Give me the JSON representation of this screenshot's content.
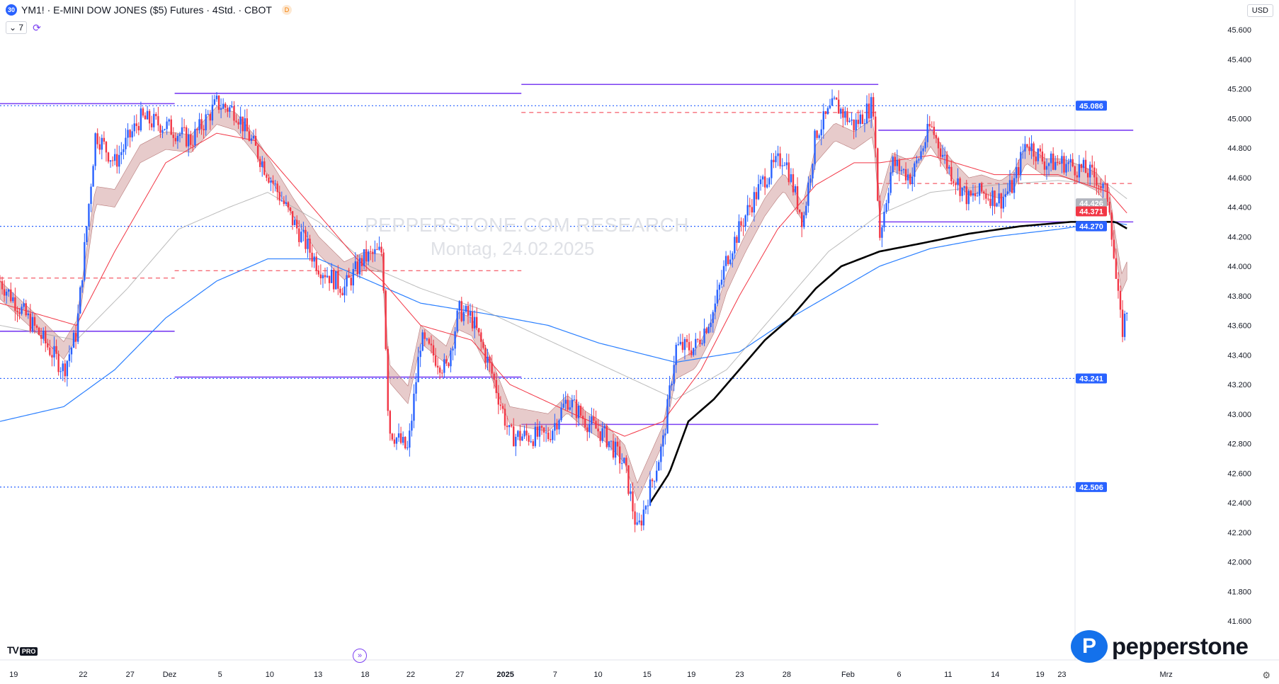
{
  "header": {
    "symbol_badge": "30",
    "title": "YM1! · E-MINI DOW JONES ($5) Futures · 4Std. · CBOT",
    "d_badge": "D",
    "indicator_count": "7",
    "currency": "USD"
  },
  "watermark": {
    "line1": "PEPPERSTONE.COM RESEARCH",
    "line2": "Montag, 24.02.2025"
  },
  "branding": {
    "tv_logo": "TV",
    "tv_pro": "PRO",
    "pepperstone_mark": "P",
    "pepperstone_word": "pepperstone"
  },
  "icons": {
    "sync": "sync-icon",
    "jump": "jump-to-realtime-icon",
    "settings": "gear-icon"
  },
  "colors": {
    "up": "#2962ff",
    "down": "#f23645",
    "ema_fast": "#f23645",
    "ema_slow": "#9e9e9e",
    "ma_long": "#2a7fff",
    "vwap": "#000000",
    "hline": "#7b3ff2",
    "dotted": "#2962ff",
    "cloud_up": "#cfcfcf",
    "cloud_down": "#c98b8b"
  },
  "chart_data": {
    "type": "candlestick",
    "title": "YM1! · E-MINI DOW JONES ($5) Futures · 4Std. · CBOT",
    "ylim": [
      41.5,
      45.7
    ],
    "y_ticks": [
      41.6,
      41.8,
      42.0,
      42.2,
      42.4,
      42.6,
      42.8,
      43.0,
      43.2,
      43.4,
      43.6,
      43.8,
      44.0,
      44.2,
      44.4,
      44.6,
      44.8,
      45.0,
      45.2,
      45.4,
      45.6
    ],
    "y_tick_labels": [
      "41.600",
      "41.800",
      "42.000",
      "42.200",
      "42.400",
      "42.600",
      "42.800",
      "43.000",
      "43.200",
      "43.400",
      "43.600",
      "43.800",
      "44.000",
      "44.200",
      "44.400",
      "44.600",
      "44.800",
      "45.000",
      "45.200",
      "45.400",
      "45.600"
    ],
    "x_ticks": [
      "19",
      "22",
      "27",
      "Dez",
      "5",
      "10",
      "13",
      "18",
      "22",
      "27",
      "2025",
      "7",
      "10",
      "15",
      "19",
      "23",
      "28",
      "Feb",
      "6",
      "11",
      "14",
      "19",
      "23",
      "Mrz"
    ],
    "x_tick_bold": [
      "2025"
    ],
    "price_labels": [
      {
        "value": 45.086,
        "text": "45.086",
        "color": "#2962ff"
      },
      {
        "value": 44.426,
        "text": "44.426",
        "color": "#b2b5be"
      },
      {
        "value": 44.371,
        "text": "44.371",
        "color": "#f23645"
      },
      {
        "value": 44.272,
        "text": "44.272",
        "color": "#2962ff"
      },
      {
        "value": 44.27,
        "text": "44.270",
        "color": "#2962ff"
      },
      {
        "value": 43.241,
        "text": "43.241",
        "color": "#2962ff"
      },
      {
        "value": 42.506,
        "text": "42.506",
        "color": "#2962ff"
      }
    ],
    "horizontal_dotted_levels": [
      45.086,
      44.27,
      43.241,
      42.506
    ],
    "trend_segments": [
      {
        "x0": 0,
        "x1": 0.137,
        "y": 45.1
      },
      {
        "x0": 0.137,
        "x1": 0.409,
        "y": 45.17
      },
      {
        "x0": 0.409,
        "x1": 0.689,
        "y": 45.23
      },
      {
        "x0": 0.689,
        "x1": 0.889,
        "y": 44.92
      },
      {
        "x0": 0.689,
        "x1": 0.889,
        "y": 44.3
      },
      {
        "x0": 0,
        "x1": 0.137,
        "y": 43.56
      },
      {
        "x0": 0.137,
        "x1": 0.409,
        "y": 43.25
      },
      {
        "x0": 0.409,
        "x1": 0.689,
        "y": 42.93
      }
    ],
    "dashed_red_levels": [
      {
        "x0": 0.0,
        "x1": 0.137,
        "y": 43.92
      },
      {
        "x0": 0.137,
        "x1": 0.409,
        "y": 43.97
      },
      {
        "x0": 0.409,
        "x1": 0.689,
        "y": 45.04
      },
      {
        "x0": 0.689,
        "x1": 0.889,
        "y": 44.56
      }
    ],
    "candle_anchors": [
      [
        0,
        43.9
      ],
      [
        0.03,
        43.55
      ],
      [
        0.05,
        43.3
      ],
      [
        0.06,
        43.55
      ],
      [
        0.075,
        44.9
      ],
      [
        0.09,
        44.7
      ],
      [
        0.11,
        45.0
      ],
      [
        0.13,
        44.95
      ],
      [
        0.15,
        44.85
      ],
      [
        0.17,
        45.1
      ],
      [
        0.185,
        45.05
      ],
      [
        0.2,
        44.8
      ],
      [
        0.215,
        44.55
      ],
      [
        0.23,
        44.3
      ],
      [
        0.25,
        44.0
      ],
      [
        0.27,
        43.85
      ],
      [
        0.285,
        44.05
      ],
      [
        0.3,
        44.1
      ],
      [
        0.305,
        42.9
      ],
      [
        0.32,
        42.75
      ],
      [
        0.33,
        43.5
      ],
      [
        0.35,
        43.3
      ],
      [
        0.36,
        43.7
      ],
      [
        0.37,
        43.65
      ],
      [
        0.385,
        43.3
      ],
      [
        0.4,
        42.85
      ],
      [
        0.415,
        42.85
      ],
      [
        0.43,
        42.85
      ],
      [
        0.445,
        43.1
      ],
      [
        0.46,
        42.95
      ],
      [
        0.475,
        42.85
      ],
      [
        0.49,
        42.65
      ],
      [
        0.5,
        42.2
      ],
      [
        0.51,
        42.5
      ],
      [
        0.52,
        42.8
      ],
      [
        0.53,
        43.45
      ],
      [
        0.545,
        43.45
      ],
      [
        0.56,
        43.7
      ],
      [
        0.57,
        44.05
      ],
      [
        0.585,
        44.35
      ],
      [
        0.6,
        44.6
      ],
      [
        0.615,
        44.75
      ],
      [
        0.63,
        44.3
      ],
      [
        0.64,
        44.9
      ],
      [
        0.655,
        45.1
      ],
      [
        0.67,
        44.95
      ],
      [
        0.685,
        45.1
      ],
      [
        0.69,
        44.2
      ],
      [
        0.7,
        44.7
      ],
      [
        0.715,
        44.6
      ],
      [
        0.73,
        44.95
      ],
      [
        0.745,
        44.65
      ],
      [
        0.76,
        44.45
      ],
      [
        0.77,
        44.5
      ],
      [
        0.785,
        44.45
      ],
      [
        0.795,
        44.55
      ],
      [
        0.805,
        44.85
      ],
      [
        0.82,
        44.7
      ],
      [
        0.835,
        44.7
      ],
      [
        0.85,
        44.65
      ],
      [
        0.86,
        44.6
      ],
      [
        0.87,
        44.45
      ],
      [
        0.875,
        43.95
      ],
      [
        0.88,
        43.55
      ],
      [
        0.885,
        43.75
      ]
    ],
    "ma_fast_anchors": [
      [
        0,
        43.75
      ],
      [
        0.06,
        43.6
      ],
      [
        0.09,
        44.1
      ],
      [
        0.13,
        44.7
      ],
      [
        0.17,
        44.9
      ],
      [
        0.2,
        44.85
      ],
      [
        0.24,
        44.45
      ],
      [
        0.28,
        44.05
      ],
      [
        0.3,
        43.9
      ],
      [
        0.33,
        43.6
      ],
      [
        0.37,
        43.5
      ],
      [
        0.4,
        43.2
      ],
      [
        0.45,
        43.0
      ],
      [
        0.49,
        42.85
      ],
      [
        0.52,
        42.95
      ],
      [
        0.55,
        43.3
      ],
      [
        0.58,
        43.8
      ],
      [
        0.61,
        44.25
      ],
      [
        0.64,
        44.55
      ],
      [
        0.67,
        44.7
      ],
      [
        0.69,
        44.7
      ],
      [
        0.73,
        44.75
      ],
      [
        0.78,
        44.62
      ],
      [
        0.83,
        44.62
      ],
      [
        0.87,
        44.5
      ],
      [
        0.885,
        44.35
      ]
    ],
    "ma_slow_anchors": [
      [
        0,
        43.6
      ],
      [
        0.06,
        43.5
      ],
      [
        0.1,
        43.85
      ],
      [
        0.14,
        44.25
      ],
      [
        0.18,
        44.4
      ],
      [
        0.21,
        44.5
      ],
      [
        0.25,
        44.3
      ],
      [
        0.29,
        44.0
      ],
      [
        0.33,
        43.85
      ],
      [
        0.38,
        43.7
      ],
      [
        0.43,
        43.5
      ],
      [
        0.48,
        43.3
      ],
      [
        0.53,
        43.1
      ],
      [
        0.57,
        43.3
      ],
      [
        0.61,
        43.7
      ],
      [
        0.65,
        44.1
      ],
      [
        0.69,
        44.35
      ],
      [
        0.73,
        44.5
      ],
      [
        0.78,
        44.55
      ],
      [
        0.83,
        44.58
      ],
      [
        0.87,
        44.55
      ],
      [
        0.885,
        44.45
      ]
    ],
    "ma_long_anchors": [
      [
        0,
        42.95
      ],
      [
        0.05,
        43.05
      ],
      [
        0.09,
        43.3
      ],
      [
        0.13,
        43.65
      ],
      [
        0.17,
        43.9
      ],
      [
        0.21,
        44.05
      ],
      [
        0.25,
        44.05
      ],
      [
        0.29,
        43.9
      ],
      [
        0.33,
        43.75
      ],
      [
        0.38,
        43.68
      ],
      [
        0.43,
        43.6
      ],
      [
        0.47,
        43.48
      ],
      [
        0.53,
        43.35
      ],
      [
        0.58,
        43.42
      ],
      [
        0.62,
        43.65
      ],
      [
        0.66,
        43.85
      ],
      [
        0.69,
        44.0
      ],
      [
        0.73,
        44.12
      ],
      [
        0.78,
        44.2
      ],
      [
        0.83,
        44.25
      ],
      [
        0.87,
        44.3
      ],
      [
        0.885,
        44.28
      ]
    ],
    "vwap_anchors": [
      [
        0.51,
        42.4
      ],
      [
        0.525,
        42.6
      ],
      [
        0.54,
        42.95
      ],
      [
        0.56,
        43.1
      ],
      [
        0.58,
        43.3
      ],
      [
        0.6,
        43.5
      ],
      [
        0.62,
        43.65
      ],
      [
        0.64,
        43.85
      ],
      [
        0.66,
        44.0
      ],
      [
        0.69,
        44.1
      ],
      [
        0.72,
        44.15
      ],
      [
        0.76,
        44.22
      ],
      [
        0.8,
        44.27
      ],
      [
        0.84,
        44.3
      ],
      [
        0.865,
        44.3
      ],
      [
        0.875,
        44.3
      ],
      [
        0.885,
        44.25
      ]
    ]
  }
}
